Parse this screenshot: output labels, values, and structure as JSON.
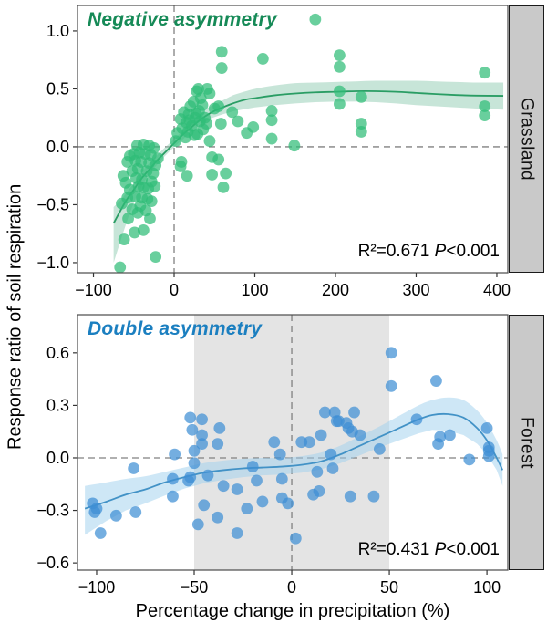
{
  "figure": {
    "y_axis_title": "Response ratio of soil respiration",
    "x_axis_title": "Percentage change in precipitation (%)",
    "background": "#ffffff"
  },
  "chart_data": [
    {
      "type": "scatter",
      "panel": "grassland",
      "strip_label": "Grassland",
      "annotation": "Negative asymmetry",
      "stats": {
        "r2": "R²=0.671",
        "p_symbol": "P",
        "p_value": "<0.001"
      },
      "colors": {
        "point": "#2fbd77",
        "trend": "#2a9d64",
        "band": "#8fccb2",
        "annotation": "#168a57",
        "reference_line": "#808080"
      },
      "axes": {
        "xlim": [
          -119.8,
          413.6
        ],
        "ylim": [
          -1.087,
          1.22
        ],
        "xticks": {
          "values": [
            -100,
            0,
            100,
            200,
            300,
            400
          ],
          "labels": [
            "−100",
            "0",
            "100",
            "200",
            "300",
            "400"
          ]
        },
        "yticks": {
          "values": [
            1.0,
            0.5,
            0.0,
            -0.5,
            -1.0
          ],
          "labels": [
            "1.0",
            "0.5",
            "0.0",
            "−0.5",
            "−1.0"
          ]
        }
      },
      "reference_lines": {
        "x": 0,
        "y": 0
      },
      "points": [
        [
          -67,
          -1.04
        ],
        [
          -23,
          -0.95
        ],
        [
          -62,
          -0.8
        ],
        [
          -49,
          -0.74
        ],
        [
          -38,
          -0.72
        ],
        [
          -57,
          -0.62
        ],
        [
          -30,
          -0.62
        ],
        [
          -45,
          -0.57
        ],
        [
          -52,
          -0.54
        ],
        [
          -35,
          -0.55
        ],
        [
          -65,
          -0.49
        ],
        [
          -42,
          -0.51
        ],
        [
          -58,
          -0.44
        ],
        [
          -48,
          -0.43
        ],
        [
          -40,
          -0.44
        ],
        [
          -33,
          -0.45
        ],
        [
          -28,
          -0.47
        ],
        [
          -55,
          -0.37
        ],
        [
          -44,
          -0.34
        ],
        [
          -38,
          -0.35
        ],
        [
          -60,
          -0.31
        ],
        [
          -32,
          -0.36
        ],
        [
          -47,
          -0.27
        ],
        [
          -40,
          -0.28
        ],
        [
          -28,
          -0.3
        ],
        [
          -24,
          -0.34
        ],
        [
          -52,
          -0.21
        ],
        [
          -45,
          -0.19
        ],
        [
          -34,
          -0.21
        ],
        [
          -26,
          -0.23
        ],
        [
          -63,
          -0.25
        ],
        [
          -58,
          -0.13
        ],
        [
          -48,
          -0.12
        ],
        [
          -41,
          -0.13
        ],
        [
          -31,
          -0.14
        ],
        [
          -23,
          -0.16
        ],
        [
          -55,
          -0.08
        ],
        [
          -50,
          -0.06
        ],
        [
          -43,
          -0.05
        ],
        [
          -36,
          -0.06
        ],
        [
          -29,
          -0.07
        ],
        [
          -20,
          -0.1
        ],
        [
          -46,
          0.01
        ],
        [
          -38,
          0.02
        ],
        [
          -31,
          0.01
        ],
        [
          -25,
          -0.01
        ],
        [
          2,
          0.05
        ],
        [
          4,
          0.12
        ],
        [
          8,
          0.24
        ],
        [
          8,
          -0.17
        ],
        [
          9,
          -0.13
        ],
        [
          10,
          0.16
        ],
        [
          12,
          0.3
        ],
        [
          14,
          0.08
        ],
        [
          15,
          0.21
        ],
        [
          16,
          -0.25
        ],
        [
          17,
          0.13
        ],
        [
          18,
          0.28
        ],
        [
          19,
          0.23
        ],
        [
          20,
          0.35
        ],
        [
          22,
          0.18
        ],
        [
          24,
          0.39
        ],
        [
          25,
          0.1
        ],
        [
          26,
          0.25
        ],
        [
          27,
          0.29
        ],
        [
          28,
          0.48
        ],
        [
          29,
          0.11
        ],
        [
          30,
          0.5
        ],
        [
          31,
          0.31
        ],
        [
          32,
          0.22
        ],
        [
          33,
          0.42
        ],
        [
          35,
          0.36
        ],
        [
          36,
          0.15
        ],
        [
          38,
          0.25
        ],
        [
          40,
          0.2
        ],
        [
          41,
          0.5
        ],
        [
          44,
          0.46
        ],
        [
          44,
          0.05
        ],
        [
          47,
          -0.09
        ],
        [
          47,
          -0.24
        ],
        [
          50,
          0.33
        ],
        [
          55,
          0.35
        ],
        [
          55,
          -0.11
        ],
        [
          58,
          0.2
        ],
        [
          61,
          -0.35
        ],
        [
          64,
          -0.23
        ],
        [
          59,
          0.82
        ],
        [
          59,
          0.68
        ],
        [
          72,
          0.3
        ],
        [
          79,
          0.22
        ],
        [
          90,
          0.12
        ],
        [
          98,
          0.17
        ],
        [
          110,
          0.76
        ],
        [
          121,
          0.31
        ],
        [
          121,
          0.23
        ],
        [
          121,
          0.07
        ],
        [
          149,
          0.01
        ],
        [
          175,
          1.1
        ],
        [
          205,
          0.79
        ],
        [
          205,
          0.69
        ],
        [
          205,
          0.48
        ],
        [
          205,
          0.37
        ],
        [
          232,
          0.43
        ],
        [
          232,
          0.2
        ],
        [
          232,
          0.13
        ],
        [
          385,
          0.64
        ],
        [
          385,
          0.35
        ],
        [
          385,
          0.27
        ]
      ],
      "trend": [
        [
          -75,
          -0.66
        ],
        [
          -60,
          -0.47
        ],
        [
          -50,
          -0.37
        ],
        [
          -40,
          -0.27
        ],
        [
          -30,
          -0.19
        ],
        [
          -20,
          -0.11
        ],
        [
          -10,
          -0.04
        ],
        [
          0,
          0.03
        ],
        [
          10,
          0.1
        ],
        [
          20,
          0.16
        ],
        [
          30,
          0.22
        ],
        [
          40,
          0.27
        ],
        [
          50,
          0.31
        ],
        [
          60,
          0.34
        ],
        [
          75,
          0.38
        ],
        [
          90,
          0.41
        ],
        [
          100,
          0.42
        ],
        [
          125,
          0.445
        ],
        [
          150,
          0.46
        ],
        [
          175,
          0.47
        ],
        [
          200,
          0.475
        ],
        [
          225,
          0.48
        ],
        [
          250,
          0.48
        ],
        [
          275,
          0.475
        ],
        [
          300,
          0.465
        ],
        [
          325,
          0.455
        ],
        [
          350,
          0.447
        ],
        [
          375,
          0.442
        ],
        [
          408,
          0.44
        ]
      ],
      "band": [
        [
          -75,
          -1.0,
          -0.52
        ],
        [
          -65,
          -0.78,
          -0.45
        ],
        [
          -55,
          -0.57,
          -0.36
        ],
        [
          -45,
          -0.4,
          -0.27
        ],
        [
          -35,
          -0.28,
          -0.175
        ],
        [
          -25,
          -0.185,
          -0.1
        ],
        [
          -15,
          -0.105,
          -0.03
        ],
        [
          -5,
          -0.035,
          0.035
        ],
        [
          5,
          0.03,
          0.1
        ],
        [
          15,
          0.09,
          0.17
        ],
        [
          25,
          0.15,
          0.24
        ],
        [
          35,
          0.2,
          0.3
        ],
        [
          45,
          0.245,
          0.35
        ],
        [
          60,
          0.28,
          0.4
        ],
        [
          75,
          0.31,
          0.45
        ],
        [
          100,
          0.34,
          0.5
        ],
        [
          125,
          0.36,
          0.53
        ],
        [
          150,
          0.375,
          0.55
        ],
        [
          175,
          0.385,
          0.555
        ],
        [
          200,
          0.39,
          0.56
        ],
        [
          225,
          0.39,
          0.565
        ],
        [
          250,
          0.385,
          0.57
        ],
        [
          275,
          0.375,
          0.57
        ],
        [
          300,
          0.36,
          0.57
        ],
        [
          325,
          0.35,
          0.565
        ],
        [
          350,
          0.34,
          0.56
        ],
        [
          375,
          0.33,
          0.555
        ],
        [
          408,
          0.32,
          0.555
        ]
      ]
    },
    {
      "type": "scatter",
      "panel": "forest",
      "strip_label": "Forest",
      "annotation": "Double asymmetry",
      "stats": {
        "r2": "R²=0.431",
        "p_symbol": "P",
        "p_value": "<0.001"
      },
      "colors": {
        "point": "#3f8fd4",
        "trend": "#4292c6",
        "band": "#9ecfee",
        "annotation": "#1b7fc0",
        "reference_line": "#808080",
        "shaded_region": "#e4e4e4"
      },
      "axes": {
        "xlim": [
          -109.8,
          110.7
        ],
        "ylim": [
          -0.641,
          0.818
        ],
        "xticks": {
          "values": [
            -100,
            -50,
            0,
            50,
            100
          ],
          "labels": [
            "−100",
            "−50",
            "0",
            "50",
            "100"
          ]
        },
        "yticks": {
          "values": [
            0.6,
            0.3,
            0.0,
            -0.3,
            -0.6
          ],
          "labels": [
            "0.6",
            "0.3",
            "0.0",
            "−0.3",
            "−0.6"
          ]
        }
      },
      "reference_lines": {
        "x": 0,
        "y": 0
      },
      "shaded_region": {
        "from": -50,
        "to": 50
      },
      "points": [
        [
          -102,
          -0.26
        ],
        [
          -101,
          -0.31
        ],
        [
          -100,
          -0.29
        ],
        [
          -98,
          -0.43
        ],
        [
          -90,
          -0.33
        ],
        [
          -81,
          -0.06
        ],
        [
          -80,
          -0.31
        ],
        [
          -61,
          -0.12
        ],
        [
          -60,
          0.02
        ],
        [
          -61,
          -0.22
        ],
        [
          -53,
          -0.13
        ],
        [
          -52,
          0.23
        ],
        [
          -52,
          -0.11
        ],
        [
          -51,
          0.16
        ],
        [
          -50,
          0.04
        ],
        [
          -50,
          -0.03
        ],
        [
          -48,
          -0.38
        ],
        [
          -46,
          0.22
        ],
        [
          -46,
          0.13
        ],
        [
          -46,
          0.08
        ],
        [
          -45,
          -0.27
        ],
        [
          -43,
          -0.1
        ],
        [
          -38,
          0.08
        ],
        [
          -38,
          -0.34
        ],
        [
          -37,
          0.17
        ],
        [
          -35,
          -0.16
        ],
        [
          -28,
          -0.18
        ],
        [
          -28,
          -0.43
        ],
        [
          -23,
          -0.29
        ],
        [
          -20,
          -0.05
        ],
        [
          -18,
          -0.13
        ],
        [
          -15,
          -0.25
        ],
        [
          -9,
          0.09
        ],
        [
          -6,
          0.02
        ],
        [
          -5,
          -0.12
        ],
        [
          -5,
          -0.23
        ],
        [
          -2,
          -0.26
        ],
        [
          2,
          -0.46
        ],
        [
          5,
          0.09
        ],
        [
          9,
          0.09
        ],
        [
          11,
          -0.21
        ],
        [
          13,
          -0.08
        ],
        [
          14,
          -0.19
        ],
        [
          15,
          0.13
        ],
        [
          17,
          0.26
        ],
        [
          20,
          0.02
        ],
        [
          21,
          -0.06
        ],
        [
          22,
          0.26
        ],
        [
          23,
          0.21
        ],
        [
          24,
          0.21
        ],
        [
          28,
          0.2
        ],
        [
          29,
          0.17
        ],
        [
          31,
          0.15
        ],
        [
          32,
          0.26
        ],
        [
          30,
          -0.22
        ],
        [
          35,
          0.13
        ],
        [
          42,
          -0.22
        ],
        [
          45,
          0.05
        ],
        [
          51,
          0.6
        ],
        [
          51,
          0.41
        ],
        [
          64,
          0.22
        ],
        [
          74,
          0.44
        ],
        [
          75,
          0.08
        ],
        [
          76,
          0.12
        ],
        [
          81,
          0.13
        ],
        [
          91,
          -0.01
        ],
        [
          100,
          0.17
        ],
        [
          101,
          0.06
        ],
        [
          101,
          0.04
        ],
        [
          101,
          0.01
        ]
      ],
      "trend": [
        [
          -106,
          -0.29
        ],
        [
          -95,
          -0.25
        ],
        [
          -85,
          -0.21
        ],
        [
          -75,
          -0.18
        ],
        [
          -65,
          -0.14
        ],
        [
          -55,
          -0.11
        ],
        [
          -45,
          -0.085
        ],
        [
          -35,
          -0.07
        ],
        [
          -25,
          -0.06
        ],
        [
          -15,
          -0.055
        ],
        [
          -5,
          -0.05
        ],
        [
          5,
          -0.04
        ],
        [
          15,
          -0.02
        ],
        [
          25,
          0.02
        ],
        [
          35,
          0.07
        ],
        [
          45,
          0.12
        ],
        [
          55,
          0.17
        ],
        [
          65,
          0.22
        ],
        [
          72,
          0.245
        ],
        [
          80,
          0.25
        ],
        [
          88,
          0.23
        ],
        [
          95,
          0.17
        ],
        [
          100,
          0.1
        ],
        [
          105,
          0.0
        ],
        [
          108,
          -0.07
        ]
      ],
      "band": [
        [
          -106,
          -0.44,
          -0.16
        ],
        [
          -95,
          -0.36,
          -0.14
        ],
        [
          -85,
          -0.3,
          -0.12
        ],
        [
          -75,
          -0.26,
          -0.105
        ],
        [
          -65,
          -0.215,
          -0.08
        ],
        [
          -55,
          -0.175,
          -0.055
        ],
        [
          -45,
          -0.145,
          -0.03
        ],
        [
          -35,
          -0.125,
          -0.015
        ],
        [
          -25,
          -0.11,
          -0.005
        ],
        [
          -15,
          -0.1,
          0.0
        ],
        [
          -5,
          -0.095,
          0.0
        ],
        [
          5,
          -0.085,
          0.01
        ],
        [
          15,
          -0.065,
          0.03
        ],
        [
          25,
          -0.03,
          0.07
        ],
        [
          35,
          0.015,
          0.125
        ],
        [
          45,
          0.06,
          0.18
        ],
        [
          55,
          0.1,
          0.24
        ],
        [
          65,
          0.14,
          0.3
        ],
        [
          72,
          0.16,
          0.33
        ],
        [
          80,
          0.155,
          0.345
        ],
        [
          88,
          0.13,
          0.33
        ],
        [
          95,
          0.08,
          0.27
        ],
        [
          100,
          0.02,
          0.2
        ],
        [
          105,
          -0.07,
          0.1
        ],
        [
          108,
          -0.16,
          0.02
        ]
      ]
    }
  ]
}
